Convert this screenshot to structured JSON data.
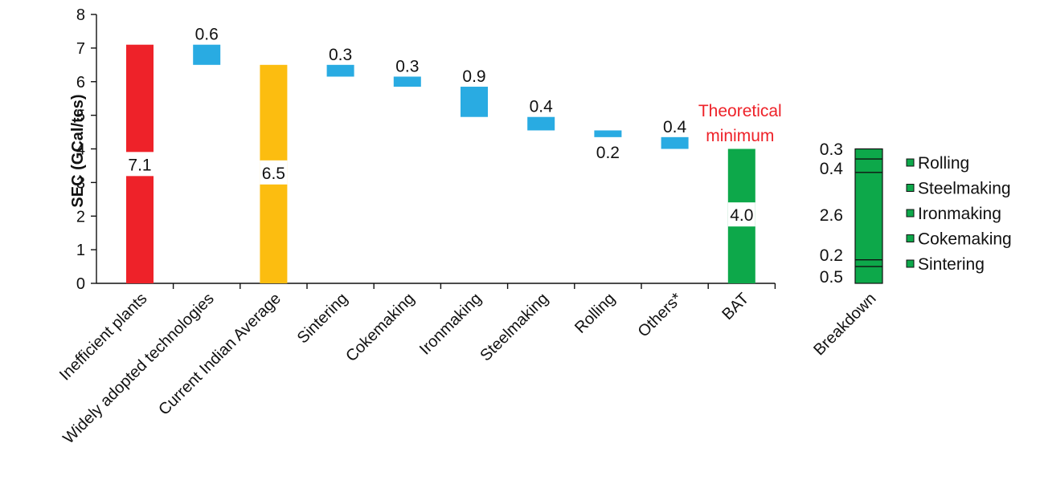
{
  "chart_data": [
    {
      "type": "bar",
      "subtype": "waterfall",
      "ylabel": "SEC (GCal/tcs)",
      "ylim": [
        0,
        8
      ],
      "yticks": [
        0,
        1,
        2,
        3,
        4,
        5,
        6,
        7,
        8
      ],
      "grid": false,
      "categories": [
        "Inefficient plants",
        "Widely adopted technologies",
        "Current Indian Average",
        "Sintering",
        "Cokemaking",
        "Ironmaking",
        "Steelmaking",
        "Rolling",
        "Others*",
        "BAT"
      ],
      "bars": [
        {
          "category": "Inefficient plants",
          "kind": "total",
          "start": 0,
          "end": 7.1,
          "label": "7.1",
          "color": "#ee2229"
        },
        {
          "category": "Widely adopted technologies",
          "kind": "reduction",
          "start": 6.5,
          "end": 7.1,
          "label": "0.6",
          "color": "#29abe2"
        },
        {
          "category": "Current Indian Average",
          "kind": "total",
          "start": 0,
          "end": 6.5,
          "label": "6.5",
          "color": "#fcbd10"
        },
        {
          "category": "Sintering",
          "kind": "reduction",
          "start": 6.15,
          "end": 6.5,
          "label": "0.3",
          "color": "#29abe2"
        },
        {
          "category": "Cokemaking",
          "kind": "reduction",
          "start": 5.85,
          "end": 6.15,
          "label": "0.3",
          "color": "#29abe2"
        },
        {
          "category": "Ironmaking",
          "kind": "reduction",
          "start": 4.95,
          "end": 5.85,
          "label": "0.9",
          "color": "#29abe2"
        },
        {
          "category": "Steelmaking",
          "kind": "reduction",
          "start": 4.55,
          "end": 4.95,
          "label": "0.4",
          "color": "#29abe2"
        },
        {
          "category": "Rolling",
          "kind": "reduction",
          "start": 4.35,
          "end": 4.55,
          "label": "0.2",
          "color": "#29abe2"
        },
        {
          "category": "Others*",
          "kind": "reduction",
          "start": 4.0,
          "end": 4.35,
          "label": "0.4",
          "color": "#29abe2"
        },
        {
          "category": "BAT",
          "kind": "total",
          "start": 0,
          "end": 4.0,
          "label": "4.0",
          "color": "#0da84a"
        }
      ],
      "annotations": [
        "Theoretical",
        "minimum"
      ],
      "annotation_color": "#ee2229"
    },
    {
      "type": "bar",
      "subtype": "stacked",
      "categories": [
        "Breakdown"
      ],
      "total": 4.0,
      "color": "#0da84a",
      "segments": [
        {
          "name": "Sintering",
          "value": 0.5,
          "label": "0.5"
        },
        {
          "name": "Cokemaking",
          "value": 0.2,
          "label": "0.2"
        },
        {
          "name": "Ironmaking",
          "value": 2.6,
          "label": "2.6"
        },
        {
          "name": "Steelmaking",
          "value": 0.4,
          "label": "0.4"
        },
        {
          "name": "Rolling",
          "value": 0.3,
          "label": "0.3"
        }
      ],
      "legend": [
        "Rolling",
        "Steelmaking",
        "Ironmaking",
        "Cokemaking",
        "Sintering"
      ],
      "legend_placement": "right"
    }
  ]
}
